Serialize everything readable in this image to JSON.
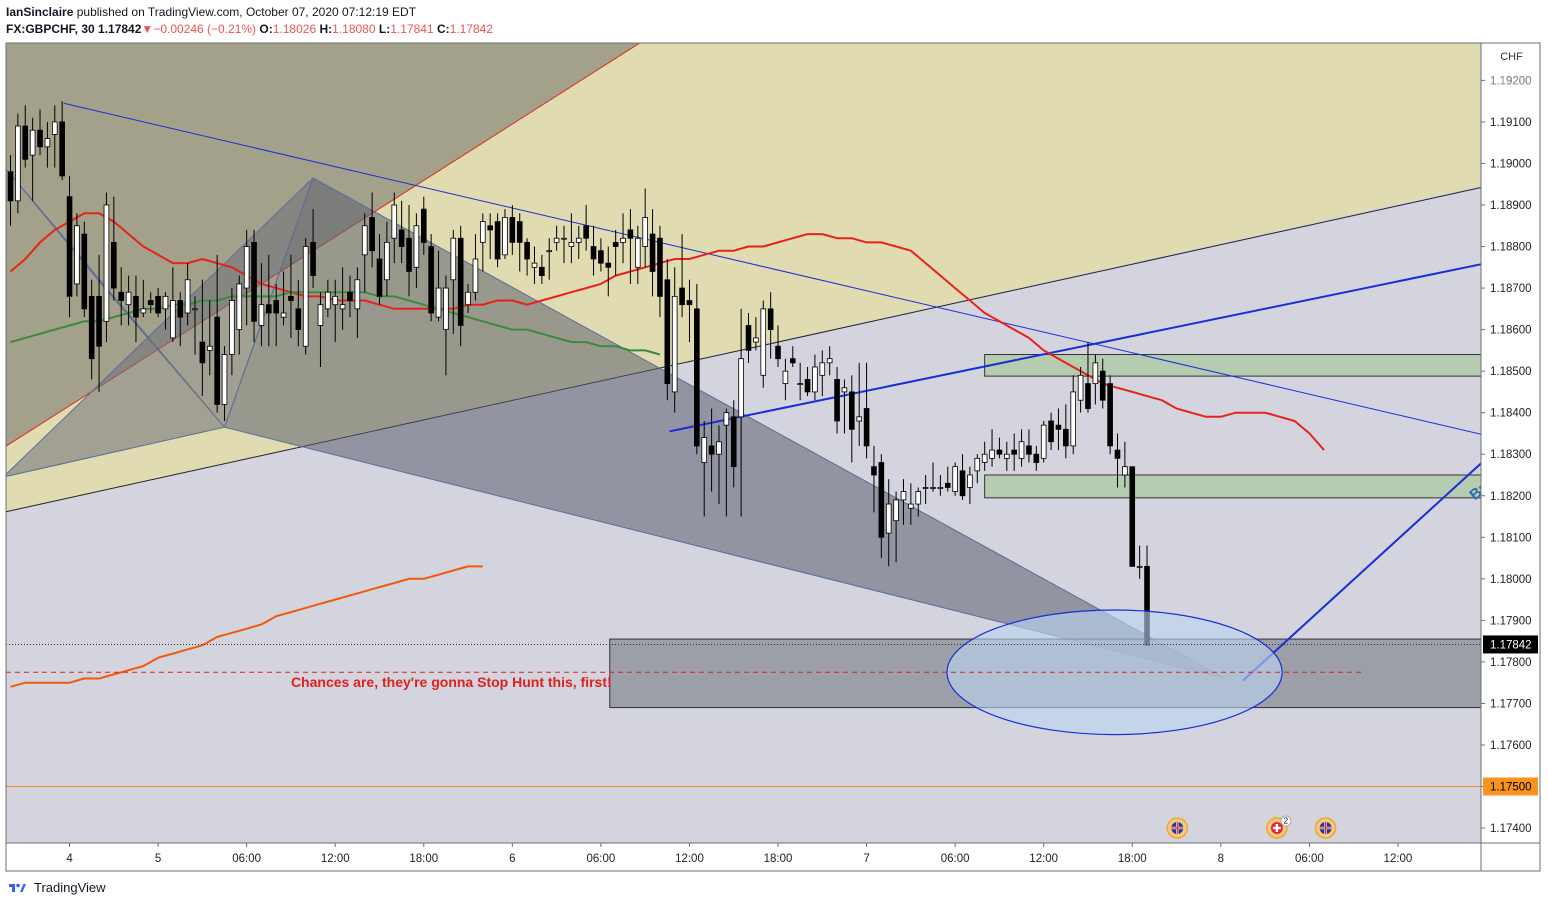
{
  "header": {
    "author": "IanSinclaire",
    "published_text": "published on TradingView.com, October 07, 2020 07:12:19 EDT",
    "symbol": "FX:GBPCHF, 30",
    "last": "1.17842",
    "arrow": "▼",
    "change": "−0.00246 (−0.21%)",
    "o_label": "O:",
    "o_val": "1.18026",
    "h_label": "H:",
    "h_val": "1.18080",
    "l_label": "L:",
    "l_val": "1.17841",
    "c_label": "C:",
    "c_val": "1.17842"
  },
  "footer": {
    "brand": "TradingView"
  },
  "colors": {
    "bull": "#ffffff",
    "bear": "#000000",
    "ema_red": "#e8221b",
    "ma_green": "#3d8a3d",
    "ma_orange": "#f05a0a",
    "trend_blue": "#1a2ed8",
    "zone_green": "#b5ccb0",
    "yellow_fill": "#e0dbb0",
    "grey_fill": "#d3d4dd",
    "dark_fill": "#8a8c96"
  },
  "chart_data": {
    "type": "candlestick",
    "currency": "CHF",
    "y_axis_ticks": [
      "1.17400",
      "1.17500",
      "1.17600",
      "1.17700",
      "1.17800",
      "1.17900",
      "1.18000",
      "1.18100",
      "1.18200",
      "1.18300",
      "1.18400",
      "1.18500",
      "1.18600",
      "1.18700",
      "1.18800",
      "1.18900",
      "1.19000",
      "1.19100",
      "1.19200"
    ],
    "ylim": [
      1.17364,
      1.1929
    ],
    "x_axis_ticks": [
      {
        "label": "4",
        "bar": 8
      },
      {
        "label": "5",
        "bar": 20
      },
      {
        "label": "06:00",
        "bar": 32
      },
      {
        "label": "12:00",
        "bar": 44
      },
      {
        "label": "18:00",
        "bar": 56
      },
      {
        "label": "6",
        "bar": 68
      },
      {
        "label": "06:00",
        "bar": 80
      },
      {
        "label": "12:00",
        "bar": 92
      },
      {
        "label": "18:00",
        "bar": 104
      },
      {
        "label": "7",
        "bar": 116
      },
      {
        "label": "06:00",
        "bar": 128
      },
      {
        "label": "12:00",
        "bar": 140
      },
      {
        "label": "18:00",
        "bar": 152
      },
      {
        "label": "8",
        "bar": 164
      },
      {
        "label": "06:00",
        "bar": 176
      },
      {
        "label": "12:00",
        "bar": 188
      }
    ],
    "price_labels": [
      {
        "text": "1.17842",
        "value": 1.17842,
        "bg": "#000000",
        "fg": "#ffffff"
      },
      {
        "text": "1.17500",
        "value": 1.175,
        "bg": "#f7931e",
        "fg": "#000000"
      }
    ],
    "annotation": {
      "text": "Chances are, they're gonna Stop Hunt this, first!",
      "color": "#e02020",
      "bar": 38,
      "price": 1.17778
    },
    "partial_label": {
      "text": "Bu",
      "bar": 198,
      "price": 1.18215
    },
    "candles": [
      [
        1.1898,
        1.1902,
        1.1885,
        1.1891
      ],
      [
        1.1891,
        1.1912,
        1.1888,
        1.1909
      ],
      [
        1.1909,
        1.1914,
        1.1899,
        1.1901
      ],
      [
        1.1902,
        1.1911,
        1.1891,
        1.1908
      ],
      [
        1.1908,
        1.1913,
        1.1902,
        1.1904
      ],
      [
        1.1904,
        1.191,
        1.1899,
        1.1906
      ],
      [
        1.1907,
        1.1914,
        1.1899,
        1.191
      ],
      [
        1.191,
        1.1915,
        1.1896,
        1.1897
      ],
      [
        1.1892,
        1.1897,
        1.1863,
        1.1868
      ],
      [
        1.1871,
        1.1888,
        1.1868,
        1.1885
      ],
      [
        1.1883,
        1.1886,
        1.1863,
        1.1865
      ],
      [
        1.1868,
        1.1872,
        1.1848,
        1.1853
      ],
      [
        1.1868,
        1.1878,
        1.1845,
        1.1856
      ],
      [
        1.1862,
        1.1893,
        1.1857,
        1.189
      ],
      [
        1.1881,
        1.1892,
        1.1867,
        1.187
      ],
      [
        1.1869,
        1.1875,
        1.1861,
        1.1867
      ],
      [
        1.1866,
        1.1873,
        1.1861,
        1.1869
      ],
      [
        1.1868,
        1.1873,
        1.1857,
        1.1863
      ],
      [
        1.1864,
        1.1872,
        1.1863,
        1.1865
      ],
      [
        1.1867,
        1.1869,
        1.1864,
        1.1866
      ],
      [
        1.1868,
        1.187,
        1.1863,
        1.1864
      ],
      [
        1.1865,
        1.1869,
        1.186,
        1.1868
      ],
      [
        1.1858,
        1.1875,
        1.1857,
        1.1867
      ],
      [
        1.1867,
        1.1869,
        1.1856,
        1.1863
      ],
      [
        1.1864,
        1.1876,
        1.1861,
        1.1872
      ],
      [
        1.1865,
        1.1868,
        1.1854,
        1.1865
      ],
      [
        1.1857,
        1.1872,
        1.1844,
        1.1852
      ],
      [
        1.1855,
        1.1867,
        1.1849,
        1.1856
      ],
      [
        1.1863,
        1.1878,
        1.184,
        1.1842
      ],
      [
        1.1842,
        1.1856,
        1.1838,
        1.1854
      ],
      [
        1.1854,
        1.187,
        1.1849,
        1.1867
      ],
      [
        1.186,
        1.1873,
        1.1854,
        1.1871
      ],
      [
        1.187,
        1.1884,
        1.1861,
        1.188
      ],
      [
        1.1881,
        1.1884,
        1.1857,
        1.1862
      ],
      [
        1.1861,
        1.1876,
        1.1856,
        1.1866
      ],
      [
        1.1866,
        1.1878,
        1.1856,
        1.1864
      ],
      [
        1.1867,
        1.1871,
        1.1856,
        1.1864
      ],
      [
        1.1863,
        1.1874,
        1.1861,
        1.1864
      ],
      [
        1.1868,
        1.1878,
        1.1858,
        1.1867
      ],
      [
        1.1865,
        1.1872,
        1.1856,
        1.186
      ],
      [
        1.1856,
        1.1882,
        1.1854,
        1.188
      ],
      [
        1.1881,
        1.1889,
        1.187,
        1.1873
      ],
      [
        1.1861,
        1.1869,
        1.1851,
        1.1866
      ],
      [
        1.1865,
        1.1872,
        1.1863,
        1.1869
      ],
      [
        1.1866,
        1.1872,
        1.1857,
        1.1868
      ],
      [
        1.1865,
        1.1875,
        1.186,
        1.1866
      ],
      [
        1.1869,
        1.1873,
        1.1863,
        1.1867
      ],
      [
        1.1865,
        1.1875,
        1.1858,
        1.1872
      ],
      [
        1.1878,
        1.1888,
        1.1869,
        1.1885
      ],
      [
        1.1887,
        1.1893,
        1.1875,
        1.1879
      ],
      [
        1.1877,
        1.1883,
        1.1866,
        1.1868
      ],
      [
        1.1872,
        1.1886,
        1.1868,
        1.1881
      ],
      [
        1.1882,
        1.1893,
        1.1876,
        1.189
      ],
      [
        1.1884,
        1.1891,
        1.1876,
        1.188
      ],
      [
        1.1882,
        1.189,
        1.1868,
        1.1874
      ],
      [
        1.1875,
        1.1888,
        1.187,
        1.1885
      ],
      [
        1.1889,
        1.1892,
        1.1878,
        1.1881
      ],
      [
        1.188,
        1.1883,
        1.1862,
        1.1864
      ],
      [
        1.1863,
        1.1879,
        1.1862,
        1.187
      ],
      [
        1.186,
        1.1873,
        1.1849,
        1.187
      ],
      [
        1.1872,
        1.1884,
        1.1859,
        1.1882
      ],
      [
        1.1882,
        1.1885,
        1.1856,
        1.1861
      ],
      [
        1.1866,
        1.1871,
        1.1864,
        1.1869
      ],
      [
        1.1869,
        1.1883,
        1.1867,
        1.1877
      ],
      [
        1.1881,
        1.1888,
        1.1874,
        1.1886
      ],
      [
        1.1885,
        1.1888,
        1.1877,
        1.1884
      ],
      [
        1.1886,
        1.1888,
        1.1875,
        1.1877
      ],
      [
        1.1878,
        1.1889,
        1.1877,
        1.1887
      ],
      [
        1.1887,
        1.189,
        1.1878,
        1.1881
      ],
      [
        1.1886,
        1.1888,
        1.1874,
        1.1881
      ],
      [
        1.1881,
        1.1882,
        1.1873,
        1.1877
      ],
      [
        1.1875,
        1.188,
        1.1871,
        1.1876
      ],
      [
        1.1875,
        1.1878,
        1.1871,
        1.1873
      ],
      [
        1.1879,
        1.1882,
        1.1872,
        1.1879
      ],
      [
        1.1881,
        1.1885,
        1.1879,
        1.1882
      ],
      [
        1.1882,
        1.1885,
        1.1876,
        1.1882
      ],
      [
        1.188,
        1.1888,
        1.1876,
        1.1881
      ],
      [
        1.1881,
        1.1885,
        1.1877,
        1.1882
      ],
      [
        1.1885,
        1.189,
        1.1879,
        1.1882
      ],
      [
        1.188,
        1.1885,
        1.1873,
        1.1877
      ],
      [
        1.1879,
        1.1882,
        1.1874,
        1.1876
      ],
      [
        1.1876,
        1.188,
        1.1868,
        1.1875
      ],
      [
        1.1881,
        1.1884,
        1.1873,
        1.188
      ],
      [
        1.1881,
        1.1888,
        1.1876,
        1.1882
      ],
      [
        1.1884,
        1.1889,
        1.1871,
        1.1882
      ],
      [
        1.1875,
        1.1885,
        1.1871,
        1.1882
      ],
      [
        1.188,
        1.1894,
        1.1875,
        1.1887
      ],
      [
        1.1883,
        1.1889,
        1.1868,
        1.1874
      ],
      [
        1.1882,
        1.1885,
        1.1863,
        1.1868
      ],
      [
        1.1872,
        1.1877,
        1.1843,
        1.1847
      ],
      [
        1.1845,
        1.1875,
        1.184,
        1.1868
      ],
      [
        1.187,
        1.1883,
        1.1863,
        1.1866
      ],
      [
        1.1867,
        1.1872,
        1.1857,
        1.1866
      ],
      [
        1.1865,
        1.1871,
        1.183,
        1.1832
      ],
      [
        1.1828,
        1.1838,
        1.1815,
        1.1834
      ],
      [
        1.1832,
        1.1841,
        1.1821,
        1.183
      ],
      [
        1.183,
        1.1837,
        1.1818,
        1.1833
      ],
      [
        1.1837,
        1.1841,
        1.1815,
        1.184
      ],
      [
        1.1839,
        1.1843,
        1.1822,
        1.1827
      ],
      [
        1.1839,
        1.1865,
        1.1815,
        1.1853
      ],
      [
        1.1861,
        1.1864,
        1.1852,
        1.1855
      ],
      [
        1.1857,
        1.1863,
        1.1855,
        1.1858
      ],
      [
        1.1849,
        1.1867,
        1.1846,
        1.1865
      ],
      [
        1.1865,
        1.1869,
        1.1853,
        1.186
      ],
      [
        1.1856,
        1.1861,
        1.1851,
        1.1853
      ],
      [
        1.1847,
        1.1853,
        1.1843,
        1.185
      ],
      [
        1.1853,
        1.1856,
        1.1851,
        1.1852
      ],
      [
        1.1847,
        1.1852,
        1.1843,
        1.1847
      ],
      [
        1.1848,
        1.1851,
        1.1844,
        1.1845
      ],
      [
        1.1845,
        1.1854,
        1.1843,
        1.1851
      ],
      [
        1.1849,
        1.1855,
        1.1844,
        1.1852
      ],
      [
        1.1852,
        1.1856,
        1.1849,
        1.1853
      ],
      [
        1.1848,
        1.1851,
        1.1835,
        1.1838
      ],
      [
        1.1845,
        1.1848,
        1.1835,
        1.1846
      ],
      [
        1.1845,
        1.1849,
        1.1828,
        1.1836
      ],
      [
        1.1838,
        1.1852,
        1.1832,
        1.1839
      ],
      [
        1.1841,
        1.1852,
        1.1829,
        1.1832
      ],
      [
        1.1827,
        1.1832,
        1.1816,
        1.1825
      ],
      [
        1.1828,
        1.183,
        1.1805,
        1.181
      ],
      [
        1.1811,
        1.1824,
        1.1803,
        1.1818
      ],
      [
        1.1814,
        1.1821,
        1.1804,
        1.1819
      ],
      [
        1.1819,
        1.1824,
        1.1813,
        1.1821
      ],
      [
        1.1817,
        1.1823,
        1.1813,
        1.1818
      ],
      [
        1.1818,
        1.1822,
        1.1815,
        1.1821
      ],
      [
        1.1822,
        1.1825,
        1.1818,
        1.1822
      ],
      [
        1.1822,
        1.1828,
        1.1821,
        1.1822
      ],
      [
        1.1822,
        1.1825,
        1.182,
        1.1822
      ],
      [
        1.1823,
        1.1827,
        1.1821,
        1.1822
      ],
      [
        1.1821,
        1.1828,
        1.182,
        1.1827
      ],
      [
        1.1826,
        1.183,
        1.1819,
        1.182
      ],
      [
        1.1822,
        1.1827,
        1.1818,
        1.1825
      ],
      [
        1.1826,
        1.183,
        1.1823,
        1.1829
      ],
      [
        1.1828,
        1.1833,
        1.1826,
        1.183
      ],
      [
        1.1829,
        1.1836,
        1.1827,
        1.1831
      ],
      [
        1.1831,
        1.1834,
        1.1829,
        1.183
      ],
      [
        1.1829,
        1.1833,
        1.1826,
        1.183
      ],
      [
        1.1831,
        1.1835,
        1.1826,
        1.183
      ],
      [
        1.1829,
        1.1836,
        1.1827,
        1.1833
      ],
      [
        1.1832,
        1.1836,
        1.1828,
        1.183
      ],
      [
        1.183,
        1.1832,
        1.1826,
        1.1828
      ],
      [
        1.1829,
        1.1838,
        1.1828,
        1.1837
      ],
      [
        1.1838,
        1.184,
        1.1831,
        1.1833
      ],
      [
        1.1837,
        1.1841,
        1.1831,
        1.1836
      ],
      [
        1.1836,
        1.1842,
        1.1829,
        1.1832
      ],
      [
        1.1832,
        1.1849,
        1.183,
        1.1845
      ],
      [
        1.1843,
        1.1851,
        1.184,
        1.1849
      ],
      [
        1.1847,
        1.1857,
        1.184,
        1.1841
      ],
      [
        1.1847,
        1.1854,
        1.1842,
        1.1852
      ],
      [
        1.185,
        1.1853,
        1.1841,
        1.1843
      ],
      [
        1.1847,
        1.1849,
        1.183,
        1.1832
      ],
      [
        1.1831,
        1.1835,
        1.1822,
        1.1829
      ],
      [
        1.1825,
        1.1833,
        1.1822,
        1.1827
      ],
      [
        1.1827,
        1.1827,
        1.1803,
        1.1803
      ],
      [
        1.1803,
        1.1808,
        1.18,
        1.1803
      ],
      [
        1.1803,
        1.1808,
        1.1784,
        1.1784
      ]
    ],
    "indicators": {
      "ema_red": {
        "color": "#e8221b",
        "values": [
          1.1874,
          1.1877,
          1.1881,
          1.1884,
          1.1886,
          1.1888,
          1.1888,
          1.1886,
          1.1883,
          1.188,
          1.1878,
          1.1876,
          1.1876,
          1.1877,
          1.1876,
          1.1875,
          1.1873,
          1.1871,
          1.187,
          1.1869,
          1.1868,
          1.1868,
          1.1867,
          1.1867,
          1.1867,
          1.1866,
          1.1865,
          1.1865,
          1.1865,
          1.1865,
          1.1865,
          1.1866,
          1.1866,
          1.1867,
          1.1867,
          1.1866,
          1.1867,
          1.1868,
          1.1869,
          1.187,
          1.1871,
          1.1873,
          1.1874,
          1.1875,
          1.1876,
          1.1877,
          1.1877,
          1.1878,
          1.1879,
          1.1879,
          1.188,
          1.188,
          1.1881,
          1.1882,
          1.1883,
          1.1883,
          1.1882,
          1.1882,
          1.1881,
          1.1881,
          1.188,
          1.1879,
          1.1876,
          1.1873,
          1.187,
          1.1867,
          1.1864,
          1.1862,
          1.186,
          1.1858,
          1.1855,
          1.1853,
          1.1851,
          1.1849,
          1.1847,
          1.1846,
          1.1845,
          1.1844,
          1.1843,
          1.1841,
          1.184,
          1.1839,
          1.1839,
          1.184,
          1.184,
          1.184,
          1.1839,
          1.1838,
          1.1835,
          1.1831
        ]
      },
      "ma_green": {
        "color": "#3d8a3d",
        "values": [
          1.1857,
          1.1858,
          1.1859,
          1.186,
          1.1861,
          1.1862,
          1.1862,
          1.1863,
          1.1864,
          1.1865,
          1.1865,
          1.1866,
          1.1866,
          1.1867,
          1.1867,
          1.1868,
          1.1868,
          1.1868,
          1.1868,
          1.1869,
          1.1869,
          1.1869,
          1.1869,
          1.1869,
          1.1869,
          1.1868,
          1.1868,
          1.1867,
          1.1866,
          1.1865,
          1.1864,
          1.1863,
          1.1862,
          1.1861,
          1.186,
          1.186,
          1.1859,
          1.1858,
          1.1857,
          1.1857,
          1.1856,
          1.1856,
          1.1855,
          1.1855,
          1.1854
        ]
      },
      "ma_orange": {
        "color": "#f05a0a",
        "values": [
          1.1774,
          1.1775,
          1.1775,
          1.1775,
          1.1775,
          1.1776,
          1.1776,
          1.1777,
          1.1778,
          1.1779,
          1.1781,
          1.1782,
          1.1783,
          1.1784,
          1.1786,
          1.1787,
          1.1788,
          1.1789,
          1.1791,
          1.1792,
          1.1793,
          1.1794,
          1.1795,
          1.1796,
          1.1797,
          1.1798,
          1.1799,
          1.18,
          1.18,
          1.1801,
          1.1802,
          1.1803,
          1.1803
        ]
      }
    }
  }
}
